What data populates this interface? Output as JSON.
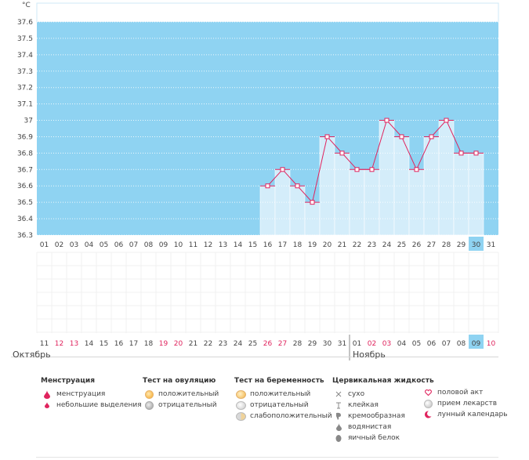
{
  "chart_data": {
    "type": "line",
    "unit": "°C",
    "ylim": [
      36.3,
      37.6
    ],
    "y_ticks": [
      "36.3",
      "36.4",
      "36.5",
      "36.6",
      "36.7",
      "36.8",
      "36.9",
      "37",
      "37.1",
      "37.2",
      "37.3",
      "37.4",
      "37.5",
      "37.6"
    ],
    "x_days": [
      "01",
      "02",
      "03",
      "04",
      "05",
      "06",
      "07",
      "08",
      "09",
      "10",
      "11",
      "12",
      "13",
      "14",
      "15",
      "16",
      "17",
      "18",
      "19",
      "20",
      "21",
      "22",
      "23",
      "24",
      "25",
      "26",
      "27",
      "28",
      "29",
      "30",
      "31"
    ],
    "highlight_day_index": 29,
    "temps": [
      null,
      null,
      null,
      null,
      null,
      null,
      null,
      null,
      null,
      null,
      null,
      null,
      null,
      null,
      null,
      36.6,
      36.7,
      36.6,
      36.5,
      36.9,
      36.8,
      36.7,
      36.7,
      37.0,
      36.9,
      36.7,
      36.9,
      37.0,
      36.8,
      36.8,
      null
    ],
    "bottom_dates": [
      {
        "d": "11",
        "red": false
      },
      {
        "d": "12",
        "red": true
      },
      {
        "d": "13",
        "red": true
      },
      {
        "d": "14",
        "red": false
      },
      {
        "d": "15",
        "red": false
      },
      {
        "d": "16",
        "red": false
      },
      {
        "d": "17",
        "red": false
      },
      {
        "d": "18",
        "red": false
      },
      {
        "d": "19",
        "red": true
      },
      {
        "d": "20",
        "red": true
      },
      {
        "d": "21",
        "red": false
      },
      {
        "d": "22",
        "red": false
      },
      {
        "d": "23",
        "red": false
      },
      {
        "d": "24",
        "red": false
      },
      {
        "d": "25",
        "red": false
      },
      {
        "d": "26",
        "red": true
      },
      {
        "d": "27",
        "red": true
      },
      {
        "d": "28",
        "red": false
      },
      {
        "d": "29",
        "red": false
      },
      {
        "d": "30",
        "red": false
      },
      {
        "d": "31",
        "red": false
      },
      {
        "d": "01",
        "red": false
      },
      {
        "d": "02",
        "red": true
      },
      {
        "d": "03",
        "red": true
      },
      {
        "d": "04",
        "red": false
      },
      {
        "d": "05",
        "red": false
      },
      {
        "d": "06",
        "red": false
      },
      {
        "d": "07",
        "red": false
      },
      {
        "d": "08",
        "red": false
      },
      {
        "d": "09",
        "red": false
      },
      {
        "d": "10",
        "red": true
      }
    ],
    "month_left": "Октябрь",
    "month_right": "Ноябрь"
  },
  "colors": {
    "plot_bg": "#8fd3f2",
    "bar_fill": "#d4edfa",
    "line": "#e0245e",
    "highlight": "#8fd3f2",
    "red_text": "#e0245e"
  },
  "legend": {
    "menstruation": {
      "title": "Менструация",
      "items": [
        {
          "label": "менструация",
          "icon": "drop-icon"
        },
        {
          "label": "небольшие выделения",
          "icon": "small-drop-icon"
        }
      ]
    },
    "ovulation": {
      "title": "Тест на овуляцию",
      "items": [
        {
          "label": "положительный",
          "icon": "orange-circle-icon"
        },
        {
          "label": "отрицательный",
          "icon": "gray-circle-icon"
        }
      ]
    },
    "pregnancy": {
      "title": "Тест на беременность",
      "items": [
        {
          "label": "положительный",
          "icon": "orange-test-icon"
        },
        {
          "label": "отрицательный",
          "icon": "gray-test-icon"
        },
        {
          "label": "слабоположительный",
          "icon": "half-test-icon"
        }
      ]
    },
    "cervical": {
      "title": "Цервикальная жидкость",
      "items": [
        {
          "label": "сухо",
          "icon": "cross-icon"
        },
        {
          "label": "клейкая",
          "icon": "t-icon"
        },
        {
          "label": "кремообразная",
          "icon": "cream-icon"
        },
        {
          "label": "водянистая",
          "icon": "water-drop-icon"
        },
        {
          "label": "яичный белок",
          "icon": "egg-white-icon"
        }
      ]
    },
    "other": {
      "items": [
        {
          "label": "половой акт",
          "icon": "heart-icon"
        },
        {
          "label": "прием лекарств",
          "icon": "pill-icon"
        },
        {
          "label": "лунный календарь",
          "icon": "moon-icon"
        }
      ]
    }
  }
}
